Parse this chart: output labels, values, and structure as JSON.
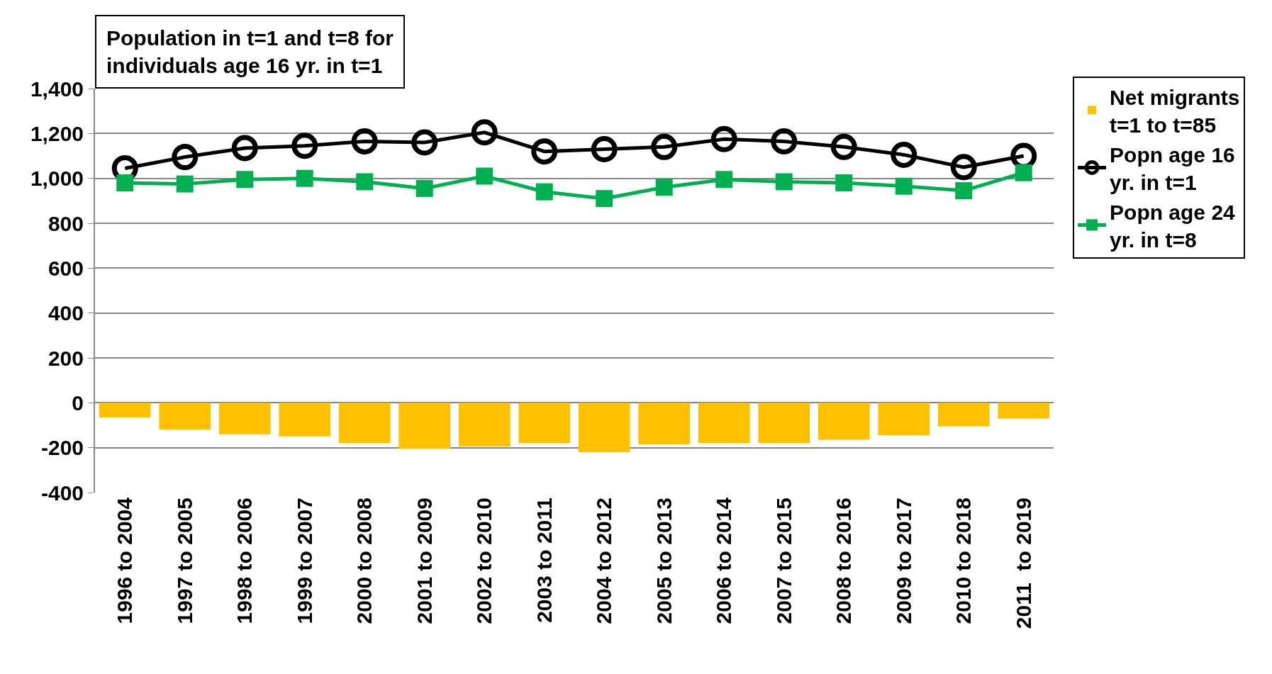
{
  "chart_data": {
    "type": "bar",
    "title": "Population in t=1 and t=8 for individuals age 16 yr. in t=1",
    "categories": [
      "1996 to 2004",
      "1997 to 2005",
      "1998 to 2006",
      "1999 to 2007",
      "2000 to 2008",
      "2001 to 2009",
      "2002 to 2010",
      "2003 to 2011",
      "2004 to 2012",
      "2005 to 2013",
      "2006 to 2014",
      "2007 to 2015",
      "2008 to 2016",
      "2009 to 2017",
      "2010 to 2018",
      "2011  to 2019"
    ],
    "series": [
      {
        "name": "Net migrants t=1 to t=85",
        "color": "#ffc000",
        "values": [
          -65,
          -120,
          -140,
          -150,
          -180,
          -205,
          -195,
          -180,
          -220,
          -185,
          -180,
          -180,
          -165,
          -145,
          -105,
          -70
        ]
      },
      {
        "name": "Popn age 16 yr. in t=1",
        "type": "line",
        "marker": "circle",
        "color": "#000000",
        "values": [
          1045,
          1095,
          1135,
          1145,
          1165,
          1160,
          1205,
          1120,
          1130,
          1140,
          1175,
          1165,
          1140,
          1105,
          1050,
          1100
        ]
      },
      {
        "name": "Popn age 24 yr. in t=8",
        "type": "line",
        "marker": "square",
        "color": "#00b050",
        "values": [
          980,
          975,
          995,
          1000,
          985,
          955,
          1010,
          940,
          910,
          960,
          995,
          985,
          980,
          965,
          945,
          1025
        ]
      }
    ],
    "ylim": [
      -400,
      1400
    ],
    "yticks": [
      {
        "value": -400,
        "label": "-400"
      },
      {
        "value": -200,
        "label": "-200"
      },
      {
        "value": 0,
        "label": "0"
      },
      {
        "value": 200,
        "label": "200"
      },
      {
        "value": 400,
        "label": "400"
      },
      {
        "value": 600,
        "label": "600"
      },
      {
        "value": 800,
        "label": "800"
      },
      {
        "value": 1000,
        "label": "1,000"
      },
      {
        "value": 1200,
        "label": "1,200"
      },
      {
        "value": 1400,
        "label": "1,400"
      }
    ],
    "grid": "y",
    "legend": "right"
  }
}
